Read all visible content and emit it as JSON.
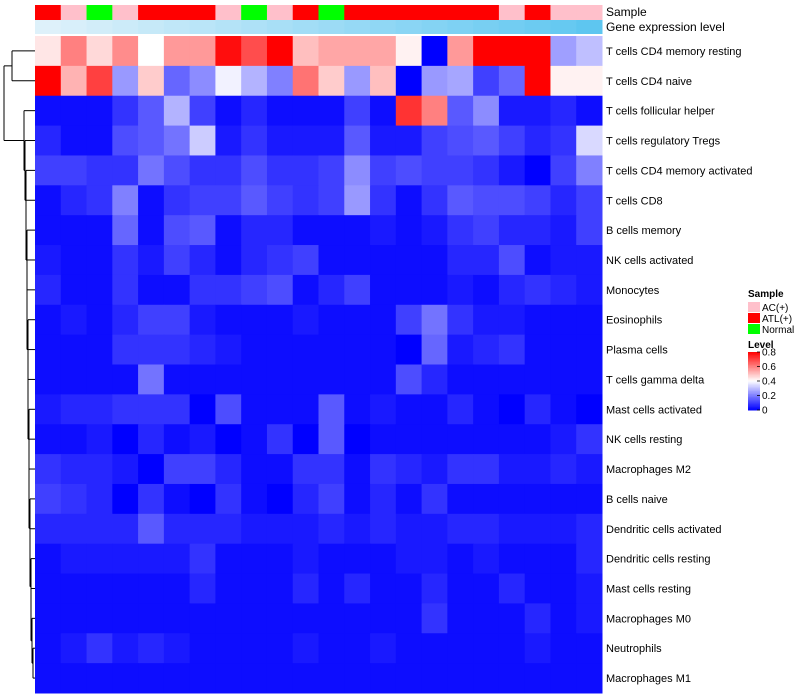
{
  "chart_data": {
    "type": "heatmap",
    "title": "",
    "annotation_rows": [
      {
        "name": "Sample"
      },
      {
        "name": "Gene expression level"
      }
    ],
    "sample_groups": [
      "ATL(+)",
      "AC(+)",
      "Normal",
      "AC(+)",
      "ATL(+)",
      "ATL(+)",
      "ATL(+)",
      "AC(+)",
      "Normal",
      "AC(+)",
      "ATL(+)",
      "Normal",
      "ATL(+)",
      "ATL(+)",
      "ATL(+)",
      "ATL(+)",
      "ATL(+)",
      "ATL(+)",
      "AC(+)",
      "ATL(+)",
      "AC(+)",
      "AC(+)"
    ],
    "expression_gradient": [
      0.05,
      0.09,
      0.13,
      0.17,
      0.21,
      0.25,
      0.29,
      0.33,
      0.37,
      0.41,
      0.45,
      0.49,
      0.53,
      0.57,
      0.61,
      0.65,
      0.69,
      0.73,
      0.77,
      0.81,
      0.85,
      0.9
    ],
    "rows": [
      "T cells CD4 memory resting",
      "T cells CD4 naive",
      "T cells follicular helper",
      "T cells regulatory  Tregs",
      "T cells CD4 memory activated",
      "T cells CD8",
      "B cells memory",
      "NK cells activated",
      "Monocytes",
      "Eosinophils",
      "Plasma cells",
      "T cells gamma delta",
      "Mast cells activated",
      "NK cells resting",
      "Macrophages M2",
      "B cells naive",
      "Dendritic cells activated",
      "Dendritic cells resting",
      "Mast cells resting",
      "Macrophages M0",
      "Neutrophils",
      "Macrophages M1"
    ],
    "values": [
      [
        0.44,
        0.6,
        0.46,
        0.58,
        0.4,
        0.56,
        0.56,
        0.78,
        0.68,
        0.8,
        0.5,
        0.54,
        0.54,
        0.54,
        0.42,
        0.0,
        0.56,
        0.8,
        0.8,
        0.8,
        0.25,
        0.3
      ],
      [
        0.8,
        0.52,
        0.7,
        0.24,
        0.48,
        0.16,
        0.22,
        0.38,
        0.28,
        0.2,
        0.62,
        0.48,
        0.24,
        0.5,
        0.0,
        0.24,
        0.26,
        0.1,
        0.16,
        0.8,
        0.42,
        0.42
      ],
      [
        0.02,
        0.02,
        0.02,
        0.08,
        0.14,
        0.28,
        0.1,
        0.02,
        0.06,
        0.02,
        0.02,
        0.02,
        0.1,
        0.02,
        0.72,
        0.6,
        0.14,
        0.22,
        0.04,
        0.04,
        0.06,
        0.02
      ],
      [
        0.06,
        0.02,
        0.02,
        0.12,
        0.14,
        0.18,
        0.32,
        0.04,
        0.08,
        0.04,
        0.04,
        0.04,
        0.14,
        0.04,
        0.04,
        0.1,
        0.12,
        0.14,
        0.1,
        0.06,
        0.08,
        0.34
      ],
      [
        0.1,
        0.1,
        0.08,
        0.08,
        0.18,
        0.12,
        0.08,
        0.08,
        0.12,
        0.08,
        0.08,
        0.1,
        0.22,
        0.1,
        0.12,
        0.1,
        0.1,
        0.08,
        0.04,
        0.0,
        0.1,
        0.2
      ],
      [
        0.02,
        0.06,
        0.08,
        0.2,
        0.02,
        0.08,
        0.1,
        0.1,
        0.14,
        0.1,
        0.08,
        0.1,
        0.24,
        0.08,
        0.02,
        0.08,
        0.14,
        0.12,
        0.12,
        0.1,
        0.06,
        0.1
      ],
      [
        0.02,
        0.02,
        0.02,
        0.16,
        0.02,
        0.12,
        0.14,
        0.02,
        0.06,
        0.06,
        0.02,
        0.02,
        0.02,
        0.04,
        0.02,
        0.04,
        0.08,
        0.1,
        0.06,
        0.06,
        0.04,
        0.1
      ],
      [
        0.04,
        0.02,
        0.02,
        0.08,
        0.04,
        0.1,
        0.06,
        0.02,
        0.06,
        0.08,
        0.1,
        0.02,
        0.02,
        0.02,
        0.02,
        0.02,
        0.06,
        0.06,
        0.12,
        0.02,
        0.04,
        0.04
      ],
      [
        0.06,
        0.02,
        0.02,
        0.08,
        0.02,
        0.02,
        0.08,
        0.08,
        0.1,
        0.12,
        0.02,
        0.06,
        0.1,
        0.02,
        0.02,
        0.02,
        0.04,
        0.02,
        0.06,
        0.08,
        0.06,
        0.04
      ],
      [
        0.02,
        0.04,
        0.02,
        0.06,
        0.1,
        0.1,
        0.04,
        0.02,
        0.02,
        0.02,
        0.04,
        0.02,
        0.02,
        0.02,
        0.1,
        0.18,
        0.08,
        0.04,
        0.04,
        0.02,
        0.02,
        0.02
      ],
      [
        0.02,
        0.02,
        0.02,
        0.08,
        0.08,
        0.08,
        0.06,
        0.04,
        0.02,
        0.02,
        0.02,
        0.02,
        0.02,
        0.02,
        0.0,
        0.16,
        0.04,
        0.06,
        0.08,
        0.02,
        0.02,
        0.02
      ],
      [
        0.02,
        0.02,
        0.02,
        0.02,
        0.18,
        0.02,
        0.02,
        0.02,
        0.02,
        0.02,
        0.02,
        0.02,
        0.02,
        0.02,
        0.12,
        0.06,
        0.02,
        0.02,
        0.02,
        0.02,
        0.02,
        0.02
      ],
      [
        0.04,
        0.06,
        0.06,
        0.08,
        0.08,
        0.08,
        0.0,
        0.12,
        0.02,
        0.02,
        0.02,
        0.14,
        0.02,
        0.04,
        0.02,
        0.02,
        0.06,
        0.02,
        0.0,
        0.06,
        0.02,
        0.0
      ],
      [
        0.02,
        0.02,
        0.04,
        0.0,
        0.06,
        0.02,
        0.04,
        0.0,
        0.02,
        0.08,
        0.0,
        0.14,
        0.0,
        0.02,
        0.02,
        0.02,
        0.02,
        0.02,
        0.02,
        0.02,
        0.04,
        0.08
      ],
      [
        0.08,
        0.06,
        0.06,
        0.04,
        0.0,
        0.1,
        0.1,
        0.06,
        0.02,
        0.02,
        0.08,
        0.08,
        0.02,
        0.08,
        0.06,
        0.04,
        0.08,
        0.08,
        0.04,
        0.04,
        0.06,
        0.04
      ],
      [
        0.1,
        0.08,
        0.06,
        0.0,
        0.08,
        0.02,
        0.0,
        0.08,
        0.02,
        0.0,
        0.06,
        0.1,
        0.02,
        0.06,
        0.02,
        0.08,
        0.02,
        0.02,
        0.02,
        0.02,
        0.02,
        0.02
      ],
      [
        0.06,
        0.06,
        0.06,
        0.06,
        0.14,
        0.06,
        0.06,
        0.06,
        0.04,
        0.04,
        0.04,
        0.06,
        0.04,
        0.06,
        0.04,
        0.04,
        0.06,
        0.06,
        0.04,
        0.04,
        0.04,
        0.06
      ],
      [
        0.02,
        0.04,
        0.04,
        0.04,
        0.04,
        0.04,
        0.08,
        0.02,
        0.02,
        0.02,
        0.04,
        0.02,
        0.02,
        0.02,
        0.04,
        0.04,
        0.02,
        0.04,
        0.02,
        0.02,
        0.02,
        0.06
      ],
      [
        0.02,
        0.02,
        0.02,
        0.02,
        0.02,
        0.02,
        0.06,
        0.02,
        0.02,
        0.02,
        0.06,
        0.02,
        0.06,
        0.02,
        0.02,
        0.06,
        0.02,
        0.02,
        0.06,
        0.02,
        0.02,
        0.04
      ],
      [
        0.02,
        0.02,
        0.02,
        0.02,
        0.02,
        0.02,
        0.02,
        0.02,
        0.02,
        0.02,
        0.02,
        0.02,
        0.02,
        0.02,
        0.02,
        0.08,
        0.02,
        0.02,
        0.02,
        0.06,
        0.02,
        0.04
      ],
      [
        0.02,
        0.04,
        0.08,
        0.04,
        0.06,
        0.04,
        0.02,
        0.02,
        0.02,
        0.02,
        0.04,
        0.02,
        0.02,
        0.04,
        0.02,
        0.02,
        0.02,
        0.02,
        0.02,
        0.04,
        0.02,
        0.02
      ],
      [
        0.02,
        0.02,
        0.02,
        0.02,
        0.02,
        0.02,
        0.02,
        0.02,
        0.02,
        0.02,
        0.02,
        0.02,
        0.02,
        0.02,
        0.02,
        0.02,
        0.02,
        0.02,
        0.02,
        0.02,
        0.02,
        0.02
      ]
    ],
    "legend": {
      "sample_title": "Sample",
      "sample_items": [
        {
          "label": "AC(+)",
          "color": "#FFC0CB"
        },
        {
          "label": "ATL(+)",
          "color": "#FF0000"
        },
        {
          "label": "Normal",
          "color": "#00FF00"
        }
      ],
      "level_title": "Level",
      "level_ticks": [
        "0.8",
        "0.6",
        "0.4",
        "0.2",
        "0"
      ],
      "level_tick_values": [
        0.8,
        0.6,
        0.4,
        0.2,
        0.0
      ],
      "level_range": [
        0,
        0.8
      ]
    },
    "colors": {
      "low": "#0000FF",
      "mid": "#FFFFFF",
      "high": "#FF0000",
      "expression_low": "#E6F4FB",
      "expression_high": "#4FC1EF"
    }
  }
}
